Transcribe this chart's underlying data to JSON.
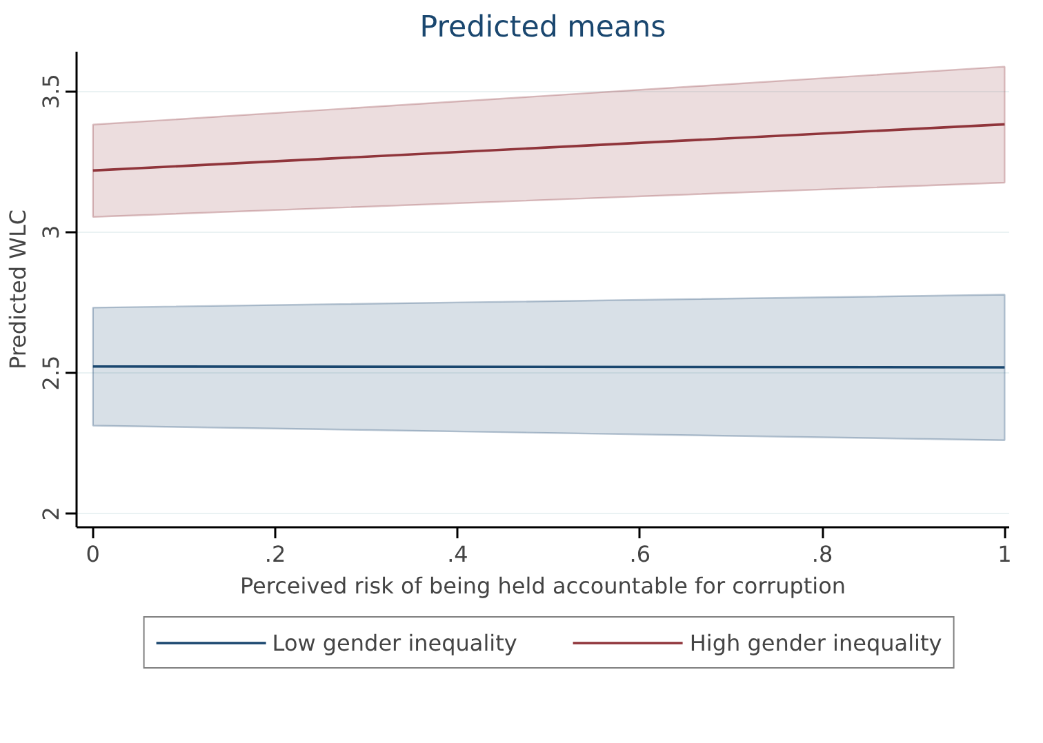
{
  "chart_data": {
    "type": "line",
    "title": "Predicted means",
    "xlabel": "Perceived risk of being held accountable for corruption",
    "ylabel": "Predicted WLC",
    "x": [
      0,
      1
    ],
    "series": [
      {
        "name": "Low gender inequality",
        "color": "#1a476f",
        "values": [
          2.523,
          2.52
        ],
        "lower": [
          2.313,
          2.261
        ],
        "upper": [
          2.732,
          2.778
        ]
      },
      {
        "name": "High gender inequality",
        "color": "#90353b",
        "values": [
          3.219,
          3.383
        ],
        "lower": [
          3.054,
          3.176
        ],
        "upper": [
          3.382,
          3.588
        ]
      }
    ],
    "xlim": [
      -0.018,
      1.005
    ],
    "ylim": [
      1.952,
      3.641
    ],
    "xticks": [
      0,
      {
        "value": 0.2,
        "label": ".2"
      },
      {
        "value": 0.4,
        "label": ".4"
      },
      {
        "value": 0.6,
        "label": ".6"
      },
      {
        "value": 0.8,
        "label": ".8"
      },
      1
    ],
    "yticks": [
      2,
      2.5,
      3,
      3.5
    ],
    "grid": "y",
    "legend": "bottom",
    "marker": "none",
    "line_style": "solid"
  }
}
